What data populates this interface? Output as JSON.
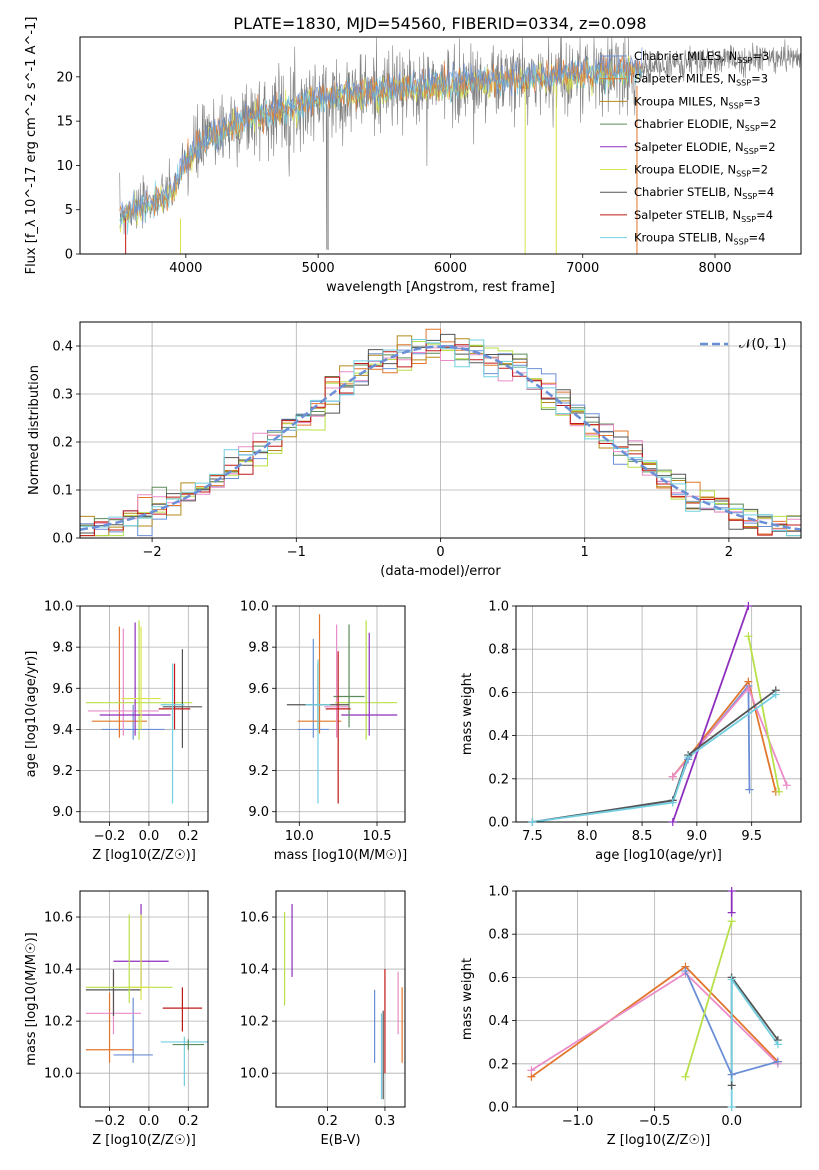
{
  "title": "PLATE=1830, MJD=54560, FIBERID=0334, z=0.098",
  "colors": {
    "Chabrier MILES": "#6a8fd6",
    "Salpeter MILES": "#e2762c",
    "Kroupa MILES": "#b58a1a",
    "Chabrier ELODIE": "#5b8c5a",
    "Salpeter ELODIE": "#8e2fbd",
    "Kroupa ELODIE": "#d9e34a",
    "Chabrier STELIB": "#555555",
    "Salpeter STELIB": "#c01818",
    "Kroupa STELIB": "#72cfe0",
    "data": "#7f7f7f",
    "pink": "#e98cc8",
    "lime": "#b8e04a",
    "gauss": "#6a8fd6",
    "grid": "#b0b0b0"
  },
  "chart_data": [
    {
      "id": "spectrum",
      "type": "line",
      "title": "PLATE=1830, MJD=54560, FIBERID=0334, z=0.098",
      "xlabel": "wavelength [Angstrom, rest frame]",
      "ylabel": "Flux [f_λ 10^-17 erg cm^-2 s^-1 A^-1]",
      "xlim": [
        3200,
        8650
      ],
      "ylim": [
        0,
        24.5
      ],
      "xticks": [
        4000,
        5000,
        6000,
        7000,
        8000
      ],
      "yticks": [
        0,
        5,
        10,
        15,
        20
      ],
      "grid": false,
      "legend_position": "top-right",
      "legend": [
        {
          "label": "Chabrier MILES, N_SSP=3"
        },
        {
          "label": "Salpeter MILES, N_SSP=3"
        },
        {
          "label": "Kroupa MILES, N_SSP=3"
        },
        {
          "label": "Chabrier ELODIE, N_SSP=2"
        },
        {
          "label": "Salpeter ELODIE, N_SSP=2"
        },
        {
          "label": "Kroupa ELODIE, N_SSP=2"
        },
        {
          "label": "Chabrier STELIB, N_SSP=4"
        },
        {
          "label": "Salpeter STELIB, N_SSP=4"
        },
        {
          "label": "Kroupa STELIB, N_SSP=4"
        }
      ],
      "continuum": {
        "x": [
          3500,
          3700,
          3900,
          4000,
          4200,
          4500,
          4800,
          5000,
          5200,
          5500,
          5800,
          6000,
          6300,
          6600,
          6900,
          7200,
          7500,
          7800,
          8000,
          8200,
          8600
        ],
        "y": [
          4.5,
          5.5,
          7.0,
          10.5,
          13.5,
          15.5,
          16.5,
          17.5,
          18.0,
          18.5,
          18.8,
          19.2,
          19.5,
          19.8,
          20.2,
          20.5,
          21.0,
          21.5,
          21.8,
          22.0,
          22.2
        ]
      },
      "model_range": [
        3500,
        7450
      ]
    },
    {
      "id": "residuals",
      "type": "histogram",
      "xlabel": "(data-model)/error",
      "ylabel": "Normed distribution",
      "xlim": [
        -2.5,
        2.5
      ],
      "ylim": [
        0,
        0.45
      ],
      "xticks": [
        -2,
        -1,
        0,
        1,
        2
      ],
      "yticks": [
        0.0,
        0.1,
        0.2,
        0.3,
        0.4
      ],
      "grid": true,
      "legend": [
        {
          "label": "𝒩(0, 1)",
          "style": "dashed"
        }
      ],
      "legend_position": "top-right",
      "bin_width": 0.1
    },
    {
      "id": "age-vs-Z",
      "type": "scatter",
      "xlabel": "Z [log10(Z/Z☉)]",
      "ylabel": "age  [log10(age/yr)]",
      "xlim": [
        -0.35,
        0.3
      ],
      "ylim": [
        8.95,
        10.0
      ],
      "xticks": [
        -0.2,
        0.0,
        0.2
      ],
      "yticks": [
        9.0,
        9.2,
        9.4,
        9.6,
        9.8,
        10.0
      ],
      "grid": true,
      "points": [
        {
          "series": "Chabrier MILES",
          "x": -0.08,
          "y": 9.4,
          "xerr": 0.16,
          "yerr": [
            0.05,
            0.12
          ]
        },
        {
          "series": "Salpeter MILES",
          "x": -0.15,
          "y": 9.44,
          "xerr": 0.14,
          "yerr": [
            0.08,
            0.46
          ]
        },
        {
          "series": "pink",
          "x": -0.13,
          "y": 9.49,
          "xerr": 0.18,
          "yerr": [
            0.12,
            0.4
          ]
        },
        {
          "series": "lime",
          "x": -0.05,
          "y": 9.53,
          "xerr": 0.27,
          "yerr": [
            0.18,
            0.4
          ]
        },
        {
          "series": "Salpeter ELODIE",
          "x": -0.07,
          "y": 9.47,
          "xerr": 0.18,
          "yerr": [
            0.1,
            0.45
          ]
        },
        {
          "series": "Kroupa ELODIE",
          "x": -0.04,
          "y": 9.55,
          "xerr": 0.1,
          "yerr": [
            0.15,
            0.35
          ]
        },
        {
          "series": "Chabrier STELIB",
          "x": 0.17,
          "y": 9.51,
          "xerr": 0.1,
          "yerr": [
            0.2,
            0.28
          ]
        },
        {
          "series": "Salpeter STELIB",
          "x": 0.13,
          "y": 9.5,
          "xerr": 0.08,
          "yerr": [
            0.1,
            0.22
          ]
        },
        {
          "series": "Kroupa STELIB",
          "x": 0.12,
          "y": 9.52,
          "xerr": 0.06,
          "yerr": [
            0.48,
            0.2
          ]
        }
      ]
    },
    {
      "id": "age-vs-mass",
      "type": "scatter",
      "xlabel": "mass [log10(M/M☉)]",
      "ylabel": "",
      "xlim": [
        9.85,
        10.68
      ],
      "ylim": [
        8.95,
        10.0
      ],
      "xticks": [
        10.0,
        10.5
      ],
      "yticks": [
        9.0,
        9.2,
        9.4,
        9.6,
        9.8,
        10.0
      ],
      "grid": true,
      "points": [
        {
          "series": "Chabrier MILES",
          "x": 10.09,
          "y": 9.4,
          "xerr": 0.1,
          "yerr": [
            0.04,
            0.44
          ]
        },
        {
          "series": "Salpeter MILES",
          "x": 10.13,
          "y": 9.44,
          "xerr": 0.14,
          "yerr": [
            0.06,
            0.52
          ]
        },
        {
          "series": "pink",
          "x": 10.24,
          "y": 9.51,
          "xerr": 0.08,
          "yerr": [
            0.15,
            0.4
          ]
        },
        {
          "series": "lime",
          "x": 10.43,
          "y": 9.53,
          "xerr": 0.2,
          "yerr": [
            0.18,
            0.4
          ]
        },
        {
          "series": "Salpeter ELODIE",
          "x": 10.45,
          "y": 9.47,
          "xerr": 0.18,
          "yerr": [
            0.1,
            0.4
          ]
        },
        {
          "series": "Chabrier ELODIE",
          "x": 10.32,
          "y": 9.56,
          "xerr": 0.1,
          "yerr": [
            0.15,
            0.35
          ]
        },
        {
          "series": "Chabrier STELIB",
          "x": 10.12,
          "y": 9.52,
          "xerr": 0.2,
          "yerr": [
            0.12,
            0.2
          ]
        },
        {
          "series": "Salpeter STELIB",
          "x": 10.25,
          "y": 9.5,
          "xerr": 0.08,
          "yerr": [
            0.46,
            0.28
          ]
        },
        {
          "series": "Kroupa STELIB",
          "x": 10.12,
          "y": 9.52,
          "xerr": 0.08,
          "yerr": [
            0.48,
            0.22
          ]
        }
      ]
    },
    {
      "id": "weight-vs-age",
      "type": "line",
      "xlabel": "age  [log10(age/yr)]",
      "ylabel": "mass weight",
      "xlim": [
        7.35,
        9.95
      ],
      "ylim": [
        0,
        1.0
      ],
      "xticks": [
        7.5,
        8.0,
        8.5,
        9.0,
        9.5
      ],
      "yticks": [
        0.0,
        0.2,
        0.4,
        0.6,
        0.8,
        1.0
      ],
      "grid": true,
      "series": [
        {
          "name": "Chabrier MILES",
          "x": [
            7.5,
            8.78,
            8.92,
            9.47,
            9.48
          ],
          "y": [
            0.0,
            0.1,
            0.29,
            0.63,
            0.15
          ]
        },
        {
          "name": "Salpeter MILES",
          "x": [
            8.78,
            9.47,
            9.72
          ],
          "y": [
            0.21,
            0.65,
            0.14
          ]
        },
        {
          "name": "pink",
          "x": [
            8.78,
            9.47,
            9.82
          ],
          "y": [
            0.21,
            0.62,
            0.17
          ]
        },
        {
          "name": "Salpeter ELODIE",
          "x": [
            8.78,
            9.47
          ],
          "y": [
            0.0,
            1.0
          ]
        },
        {
          "name": "lime",
          "x": [
            9.47,
            9.75
          ],
          "y": [
            0.86,
            0.14
          ]
        },
        {
          "name": "Chabrier STELIB",
          "x": [
            7.5,
            8.78,
            8.92,
            9.72
          ],
          "y": [
            0.0,
            0.1,
            0.31,
            0.61
          ]
        },
        {
          "name": "Kroupa STELIB",
          "x": [
            7.5,
            8.78,
            8.92,
            9.72
          ],
          "y": [
            0.0,
            0.09,
            0.3,
            0.59
          ]
        }
      ]
    },
    {
      "id": "mass-vs-Z",
      "type": "scatter",
      "xlabel": "Z [log10(Z/Z☉)]",
      "ylabel": "mass [log10(M/M☉)]",
      "xlim": [
        -0.35,
        0.3
      ],
      "ylim": [
        9.87,
        10.7
      ],
      "xticks": [
        -0.2,
        0.0,
        0.2
      ],
      "yticks": [
        10.0,
        10.2,
        10.4,
        10.6
      ],
      "grid": true,
      "points": [
        {
          "series": "Chabrier MILES",
          "x": -0.08,
          "y": 10.07,
          "xerr": 0.1,
          "yerr": [
            0.03,
            0.22
          ]
        },
        {
          "series": "Salpeter MILES",
          "x": -0.2,
          "y": 10.09,
          "xerr": 0.12,
          "yerr": [
            0.05,
            0.22
          ]
        },
        {
          "series": "pink",
          "x": -0.18,
          "y": 10.23,
          "xerr": 0.14,
          "yerr": [
            0.08,
            0.16
          ]
        },
        {
          "series": "Chabrier STELIB",
          "x": -0.18,
          "y": 10.32,
          "xerr": 0.14,
          "yerr": [
            0.1,
            0.08
          ]
        },
        {
          "series": "Salpeter ELODIE",
          "x": -0.04,
          "y": 10.43,
          "xerr": 0.14,
          "yerr": [
            0.1,
            0.22
          ]
        },
        {
          "series": "lime",
          "x": -0.1,
          "y": 10.33,
          "xerr": 0.22,
          "yerr": [
            0.06,
            0.28
          ]
        },
        {
          "series": "Kroupa ELODIE",
          "x": -0.04,
          "y": 10.33,
          "xerr": 0.06,
          "yerr": [
            0.05,
            0.28
          ]
        },
        {
          "series": "Salpeter STELIB",
          "x": 0.17,
          "y": 10.25,
          "xerr": 0.1,
          "yerr": [
            0.09,
            0.08
          ]
        },
        {
          "series": "Kroupa STELIB",
          "x": 0.18,
          "y": 10.12,
          "xerr": 0.12,
          "yerr": [
            0.17,
            0.02
          ]
        },
        {
          "series": "Chabrier ELODIE",
          "x": 0.2,
          "y": 10.11,
          "xerr": 0.08,
          "yerr": [
            0.02,
            0.02
          ]
        }
      ]
    },
    {
      "id": "mass-vs-EBV",
      "type": "scatter",
      "xlabel": "E(B-V)",
      "ylabel": "",
      "xlim": [
        0.11,
        0.335
      ],
      "ylim": [
        9.87,
        10.7
      ],
      "xticks": [
        0.2,
        0.3
      ],
      "yticks": [
        10.0,
        10.2,
        10.4,
        10.6
      ],
      "grid": true,
      "points": [
        {
          "series": "lime",
          "x": 0.125,
          "y": 10.44,
          "xerr": 0,
          "yerr": [
            0.18,
            0.18
          ]
        },
        {
          "series": "Salpeter ELODIE",
          "x": 0.138,
          "y": 10.5,
          "xerr": 0,
          "yerr": [
            0.13,
            0.15
          ]
        },
        {
          "series": "Chabrier MILES",
          "x": 0.282,
          "y": 10.16,
          "xerr": 0,
          "yerr": [
            0.12,
            0.16
          ]
        },
        {
          "series": "Kroupa STELIB",
          "x": 0.294,
          "y": 10.1,
          "xerr": 0,
          "yerr": [
            0.2,
            0.13
          ]
        },
        {
          "series": "Chabrier STELIB",
          "x": 0.297,
          "y": 10.07,
          "xerr": 0,
          "yerr": [
            0.17,
            0.17
          ]
        },
        {
          "series": "Salpeter STELIB",
          "x": 0.3,
          "y": 10.2,
          "xerr": 0,
          "yerr": [
            0.2,
            0.2
          ]
        },
        {
          "series": "pink",
          "x": 0.323,
          "y": 10.25,
          "xerr": 0,
          "yerr": [
            0.1,
            0.14
          ]
        },
        {
          "series": "Salpeter MILES",
          "x": 0.33,
          "y": 10.2,
          "xerr": 0,
          "yerr": [
            0.16,
            0.13
          ]
        }
      ]
    },
    {
      "id": "weight-vs-Z",
      "type": "line",
      "xlabel": "Z [log10(Z/Z☉)]",
      "ylabel": "mass weight",
      "xlim": [
        -1.4,
        0.45
      ],
      "ylim": [
        0,
        1.0
      ],
      "xticks": [
        -1.0,
        -0.5,
        0.0
      ],
      "yticks": [
        0.0,
        0.2,
        0.4,
        0.6,
        0.8,
        1.0
      ],
      "grid": true,
      "series": [
        {
          "name": "Salpeter MILES",
          "x": [
            -1.3,
            -0.3,
            0.3
          ],
          "y": [
            0.14,
            0.65,
            0.21
          ]
        },
        {
          "name": "pink",
          "x": [
            -1.3,
            -0.3,
            0.3
          ],
          "y": [
            0.17,
            0.62,
            0.2
          ]
        },
        {
          "name": "Chabrier MILES",
          "x": [
            -0.3,
            0.0,
            0.3
          ],
          "y": [
            0.63,
            0.15,
            0.21
          ]
        },
        {
          "name": "lime",
          "x": [
            -0.3,
            0.0
          ],
          "y": [
            0.14,
            0.86
          ]
        },
        {
          "name": "Chabrier STELIB",
          "x": [
            0.0,
            0.0,
            0.3
          ],
          "y": [
            0.1,
            0.6,
            0.31
          ]
        },
        {
          "name": "Kroupa STELIB",
          "x": [
            0.0,
            0.0,
            0.3
          ],
          "y": [
            0.0,
            0.59,
            0.29
          ]
        },
        {
          "name": "Salpeter ELODIE",
          "x": [
            0.0,
            0.0
          ],
          "y": [
            0.9,
            1.0
          ]
        }
      ]
    }
  ]
}
